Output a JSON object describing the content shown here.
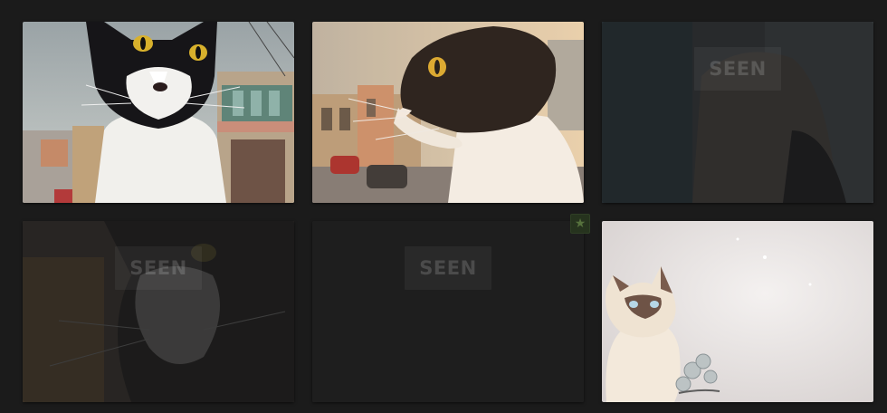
{
  "gallery": {
    "seen_label": "SEEN",
    "favorite_icon_glyph": "★",
    "tiles": [
      {
        "id": "cat-tile-1",
        "seen": false
      },
      {
        "id": "cat-tile-2",
        "seen": false
      },
      {
        "id": "cat-tile-3",
        "seen": true
      },
      {
        "id": "cat-tile-4",
        "seen": true
      },
      {
        "id": "cat-tile-5",
        "seen": true
      },
      {
        "id": "cat-tile-6",
        "seen": false
      }
    ]
  },
  "colors": {
    "background": "#1b1b1b",
    "favorite_accent": "#56713d"
  }
}
